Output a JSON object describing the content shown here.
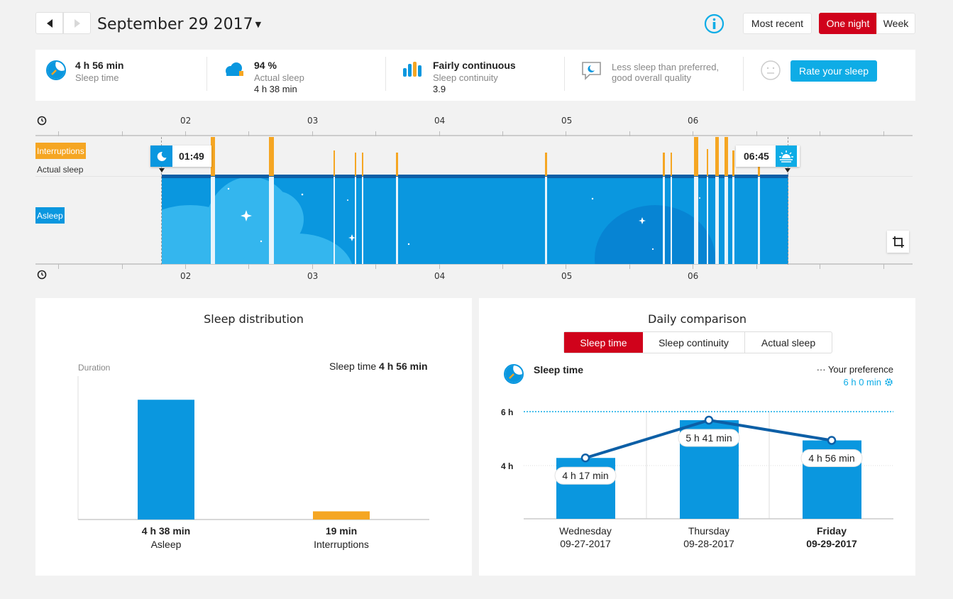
{
  "header": {
    "date": "September 29 2017",
    "buttons": {
      "most_recent": "Most recent",
      "one_night": "One night",
      "week": "Week"
    }
  },
  "summary": {
    "sleep_time": {
      "value": "4 h 56 min",
      "label": "Sleep time"
    },
    "actual_sleep": {
      "value": "94 %",
      "label": "Actual sleep",
      "detail": "4 h 38 min"
    },
    "continuity": {
      "value": "Fairly continuous",
      "label": "Sleep continuity",
      "detail": "3.9"
    },
    "quality": {
      "line1": "Less sleep than preferred,",
      "line2": "good overall quality"
    },
    "rate_button": "Rate your sleep"
  },
  "timeline": {
    "hour_labels": [
      "02",
      "03",
      "04",
      "05",
      "06"
    ],
    "labels": {
      "interruptions": "Interruptions",
      "actual_sleep": "Actual sleep",
      "asleep": "Asleep"
    },
    "sleep_start": "01:49",
    "sleep_end": "06:45",
    "colors": {
      "asleep": "#0a97df",
      "interruption": "#f5a623",
      "top_band": "#0d5fa6"
    }
  },
  "distribution": {
    "title": "Sleep distribution",
    "axis_label": "Duration",
    "sleep_time_label": "Sleep time",
    "sleep_time_value": "4 h 56 min",
    "chart_data": {
      "type": "bar",
      "categories": [
        "Asleep",
        "Interruptions"
      ],
      "values": [
        278,
        19
      ],
      "value_labels": [
        "4 h 38 min",
        "19 min"
      ],
      "colors": [
        "#0a97df",
        "#f5a623"
      ]
    }
  },
  "comparison": {
    "title": "Daily comparison",
    "tabs": [
      "Sleep time",
      "Sleep continuity",
      "Actual sleep"
    ],
    "metric_title": "Sleep time",
    "preference_label": "··· Your preference",
    "preference_value": "6 h 0 min",
    "y_ticks": [
      "6 h",
      "4 h"
    ],
    "chart_data": {
      "type": "bar",
      "categories": [
        "Wednesday 09-27-2017",
        "Thursday 09-28-2017",
        "Friday 09-29-2017"
      ],
      "days": [
        "Wednesday",
        "Thursday",
        "Friday"
      ],
      "dates": [
        "09-27-2017",
        "09-28-2017",
        "09-29-2017"
      ],
      "values": [
        257,
        341,
        296
      ],
      "value_labels": [
        "4 h 17 min",
        "5 h 41 min",
        "4 h 56 min"
      ],
      "preference": 360,
      "colors": {
        "bar": "#0a97df",
        "line": "#0d5fa6",
        "preference": "#0eace6"
      }
    }
  }
}
